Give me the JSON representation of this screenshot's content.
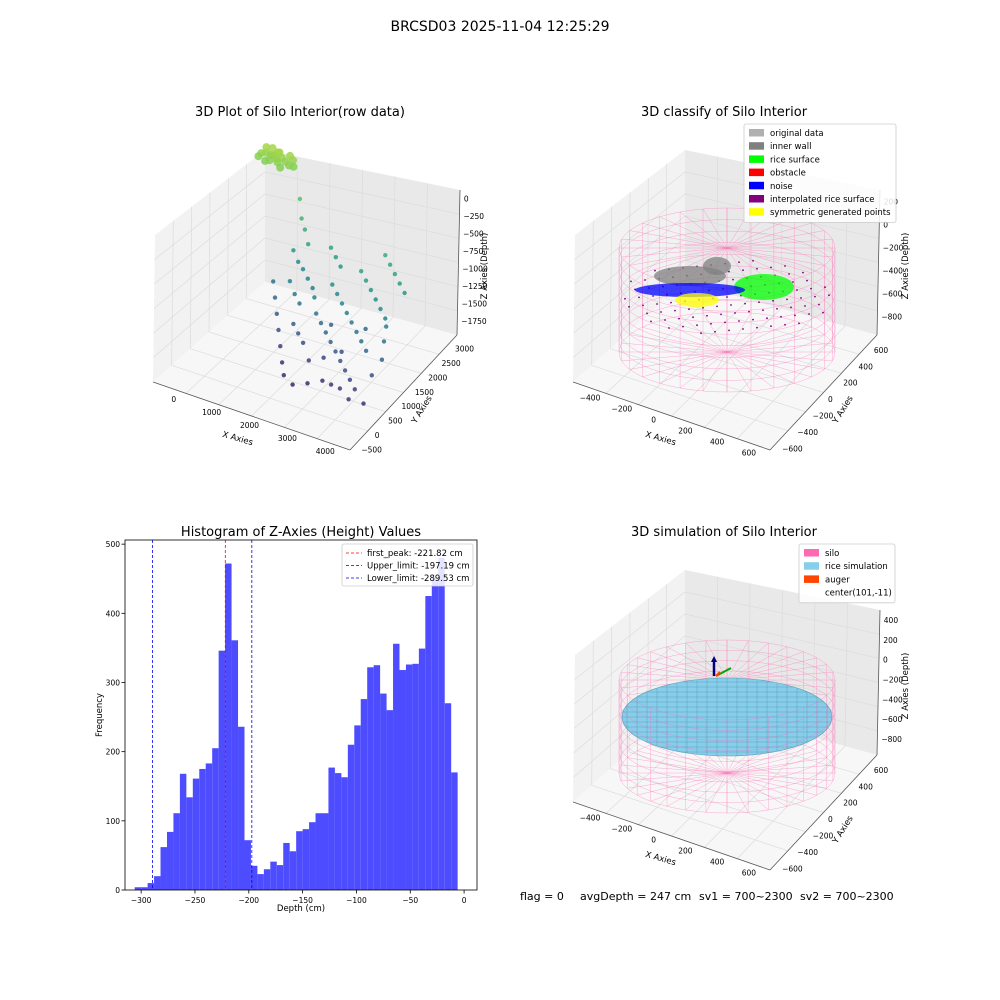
{
  "figure": {
    "title": "BRCSD03 2025-11-04 12:25:29",
    "status": {
      "flag": "flag = 0",
      "avg_depth": "avgDepth = 247 cm",
      "sv1": "sv1 = 700~2300",
      "sv2": "sv2 = 700~2300"
    }
  },
  "chart_data": [
    {
      "type": "scatter",
      "projection": "3d",
      "title": "3D Plot of Silo Interior(row data)",
      "xlabel": "X Axies",
      "ylabel": "Y Axies",
      "zlabel": "Z Axies (Depth)",
      "x_ticks": [
        "0",
        "1000",
        "2000",
        "3000",
        "4000"
      ],
      "y_ticks": [
        "−500",
        "0",
        "500",
        "1000",
        "1500",
        "2000",
        "2500",
        "3000"
      ],
      "z_ticks": [
        "0",
        "−250",
        "−500",
        "−750",
        "−1000",
        "−1250",
        "−1500",
        "−1750"
      ],
      "xlim": [
        -500,
        4500
      ],
      "ylim": [
        -500,
        3000
      ],
      "zlim": [
        -2000,
        100
      ],
      "colormap": "viridis",
      "points_xyz": [
        [
          -350,
          2850,
          -250
        ],
        [
          -250,
          2880,
          -240
        ],
        [
          -150,
          2900,
          -260
        ],
        [
          -50,
          2870,
          -230
        ],
        [
          50,
          2840,
          -250
        ],
        [
          150,
          2880,
          -230
        ],
        [
          -300,
          2950,
          -200
        ],
        [
          0,
          2950,
          -220
        ],
        [
          -100,
          2800,
          -280
        ],
        [
          100,
          2800,
          -270
        ],
        [
          250,
          2860,
          -260
        ],
        [
          350,
          2850,
          -290
        ],
        [
          -200,
          2780,
          -300
        ],
        [
          200,
          2760,
          -310
        ],
        [
          400,
          2920,
          -240
        ],
        [
          450,
          2870,
          -300
        ],
        [
          -400,
          2820,
          -290
        ],
        [
          300,
          2950,
          -210
        ],
        [
          -150,
          2960,
          -190
        ],
        [
          50,
          2930,
          -200
        ],
        [
          900,
          2500,
          -500
        ],
        [
          1100,
          2300,
          -650
        ],
        [
          1300,
          2150,
          -700
        ],
        [
          1500,
          2000,
          -800
        ],
        [
          1200,
          1900,
          -900
        ],
        [
          1400,
          1800,
          -980
        ],
        [
          1600,
          1700,
          -1000
        ],
        [
          1800,
          1600,
          -1050
        ],
        [
          2000,
          1500,
          -1100
        ],
        [
          1500,
          1400,
          -1050
        ],
        [
          1700,
          1300,
          -1150
        ],
        [
          1900,
          1200,
          -1200
        ],
        [
          2200,
          1300,
          -1100
        ],
        [
          2400,
          1100,
          -1200
        ],
        [
          2600,
          1000,
          -1250
        ],
        [
          2800,
          900,
          -1300
        ],
        [
          3000,
          800,
          -1350
        ],
        [
          3200,
          700,
          -1400
        ],
        [
          3400,
          600,
          -1450
        ],
        [
          3600,
          500,
          -1500
        ],
        [
          3800,
          400,
          -1550
        ],
        [
          4000,
          300,
          -1600
        ],
        [
          2500,
          1500,
          -950
        ],
        [
          2700,
          1400,
          -1000
        ],
        [
          2900,
          1300,
          -1050
        ],
        [
          3100,
          1200,
          -1100
        ],
        [
          3300,
          1100,
          -1150
        ],
        [
          3500,
          1000,
          -1200
        ],
        [
          3700,
          900,
          -1250
        ],
        [
          3900,
          800,
          -1300
        ],
        [
          3000,
          1800,
          -800
        ],
        [
          3200,
          1700,
          -850
        ],
        [
          3400,
          1600,
          -900
        ],
        [
          3600,
          1500,
          -950
        ],
        [
          3800,
          1400,
          -1000
        ],
        [
          4000,
          1300,
          -1050
        ],
        [
          4100,
          1200,
          -1100
        ],
        [
          4200,
          1000,
          -1200
        ],
        [
          4300,
          800,
          -1350
        ],
        [
          4200,
          600,
          -1500
        ],
        [
          3300,
          2200,
          -700
        ],
        [
          3500,
          2100,
          -750
        ],
        [
          3700,
          2000,
          -800
        ],
        [
          3900,
          1900,
          -850
        ],
        [
          4100,
          1800,
          -900
        ],
        [
          2000,
          2100,
          -800
        ],
        [
          2200,
          2000,
          -850
        ],
        [
          2400,
          1900,
          -900
        ],
        [
          1000,
          1500,
          -1200
        ],
        [
          1200,
          1300,
          -1300
        ],
        [
          1400,
          1100,
          -1400
        ],
        [
          1600,
          900,
          -1500
        ],
        [
          1800,
          700,
          -1600
        ],
        [
          2000,
          500,
          -1700
        ],
        [
          2200,
          300,
          -1750
        ],
        [
          2500,
          200,
          -1780
        ],
        [
          2800,
          300,
          -1750
        ],
        [
          3100,
          400,
          -1700
        ],
        [
          3400,
          300,
          -1650
        ],
        [
          3700,
          200,
          -1600
        ],
        [
          4000,
          100,
          -1650
        ],
        [
          4300,
          200,
          -1700
        ],
        [
          2600,
          600,
          -1600
        ],
        [
          2900,
          700,
          -1550
        ],
        [
          3200,
          900,
          -1500
        ],
        [
          1900,
          1000,
          -1400
        ],
        [
          2100,
          900,
          -1450
        ],
        [
          2300,
          800,
          -1500
        ],
        [
          2700,
          1200,
          -1350
        ],
        [
          3500,
          1300,
          -1300
        ]
      ]
    },
    {
      "type": "scatter",
      "projection": "3d",
      "title": "3D classify of Silo Interior",
      "xlabel": "X Axies",
      "ylabel": "Y Axies",
      "zlabel": "Z Axies (Depth)",
      "x_ticks": [
        "−400",
        "−200",
        "0",
        "200",
        "400",
        "600"
      ],
      "y_ticks": [
        "−600",
        "−400",
        "−200",
        "0",
        "200",
        "400",
        "600"
      ],
      "z_ticks": [
        "200",
        "0",
        "−200",
        "−400",
        "−600",
        "−800"
      ],
      "xlim": [
        -500,
        700
      ],
      "ylim": [
        -650,
        650
      ],
      "zlim": [
        -900,
        250
      ],
      "legend": {
        "position": "top-right",
        "entries": [
          {
            "label": "original data",
            "color": "#b0b0b0"
          },
          {
            "label": "inner wall",
            "color": "#808080"
          },
          {
            "label": "rice surface",
            "color": "#00ff00"
          },
          {
            "label": "obstacle",
            "color": "#ff0000"
          },
          {
            "label": "noise",
            "color": "#0000ff"
          },
          {
            "label": "interpolated rice surface",
            "color": "#800080"
          },
          {
            "label": "symmetric generated points",
            "color": "#ffff00"
          }
        ]
      },
      "silo": {
        "radius": 550,
        "z_top": 0,
        "z_bottom": -900,
        "color": "#ff69b4"
      },
      "surface_z": -250,
      "clusters": [
        {
          "class": "inner wall",
          "center": [
            -150,
            250
          ],
          "rx": 160,
          "ry": 70,
          "z": -220
        },
        {
          "class": "inner wall",
          "center": [
            80,
            280
          ],
          "rx": 110,
          "ry": 60,
          "z": -150
        },
        {
          "class": "rice surface",
          "center": [
            330,
            130
          ],
          "rx": 180,
          "ry": 80,
          "z": -260
        },
        {
          "class": "noise",
          "center": [
            -50,
            0
          ],
          "rx": 240,
          "ry": 50,
          "z": -240
        },
        {
          "class": "symmetric generated points",
          "center": [
            -120,
            -80
          ],
          "rx": 120,
          "ry": 40,
          "z": -270
        }
      ]
    },
    {
      "type": "bar",
      "title": "Histogram of Z-Axies (Height) Values",
      "xlabel": "Depth (cm)",
      "ylabel": "Frequency",
      "xlim": [
        -315,
        12
      ],
      "ylim": [
        0,
        506
      ],
      "x_ticks": [
        -300,
        -250,
        -200,
        -150,
        -100,
        -50,
        0
      ],
      "y_ticks": [
        0,
        100,
        200,
        300,
        400,
        500
      ],
      "bar_color": "#4d4dff",
      "bin_edges_start": -306,
      "bin_width": 6,
      "values": [
        4,
        4,
        10,
        20,
        62,
        84,
        111,
        168,
        134,
        161,
        175,
        183,
        205,
        346,
        472,
        361,
        236,
        72,
        35,
        23,
        30,
        41,
        36,
        68,
        56,
        85,
        88,
        98,
        111,
        111,
        177,
        169,
        163,
        210,
        238,
        276,
        322,
        325,
        284,
        260,
        356,
        318,
        326,
        327,
        349,
        425,
        452,
        480,
        270,
        170
      ],
      "vlines": [
        {
          "x": -221.82,
          "color": "#ff0000",
          "label": "first_peak: -221.82 cm"
        },
        {
          "x": -197.19,
          "color": "#0000ff",
          "label": "Upper_limit: -197.19 cm"
        },
        {
          "x": -289.53,
          "color": "#0000ff",
          "label": "Lower_limit: -289.53 cm"
        }
      ],
      "legend": "top-right"
    },
    {
      "type": "surface",
      "projection": "3d",
      "title": "3D simulation of Silo Interior",
      "xlabel": "X Axies",
      "ylabel": "Y Axies",
      "zlabel": "Z Axies (Depth)",
      "x_ticks": [
        "−400",
        "−200",
        "0",
        "200",
        "400",
        "600"
      ],
      "y_ticks": [
        "−600",
        "−400",
        "−200",
        "0",
        "200",
        "400",
        "600"
      ],
      "z_ticks": [
        "400",
        "200",
        "0",
        "−200",
        "−400",
        "−600",
        "−800"
      ],
      "xlim": [
        -500,
        700
      ],
      "ylim": [
        -650,
        650
      ],
      "zlim": [
        -900,
        450
      ],
      "legend": {
        "position": "top-right",
        "entries": [
          {
            "label": "silo",
            "color": "#ff69b4"
          },
          {
            "label": "rice simulation",
            "color": "#87ceeb"
          },
          {
            "label": "auger",
            "color": "#ff4500"
          },
          {
            "label": "center(101,-11)",
            "color": ""
          }
        ]
      },
      "center": [
        101,
        -11
      ],
      "silo": {
        "radius": 550,
        "z_top": 0,
        "z_bottom": -900,
        "color": "#ff69b4"
      },
      "rice_surface_z": -250,
      "rice_color": "#87ceeb"
    }
  ]
}
